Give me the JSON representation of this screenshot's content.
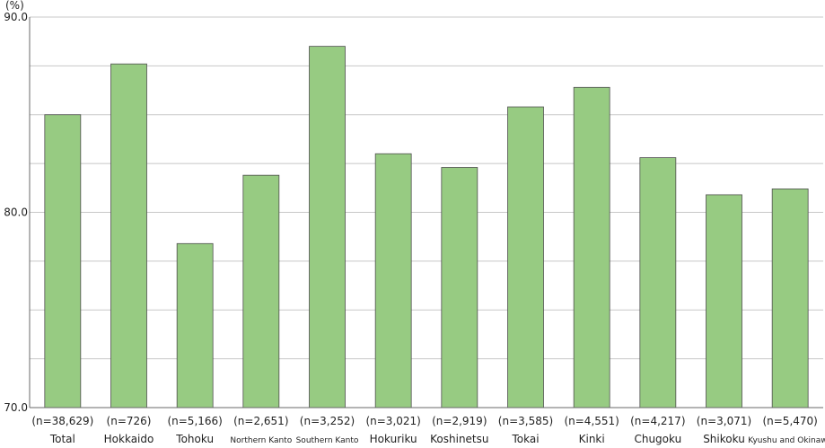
{
  "chart_data": {
    "type": "bar",
    "unit_label": "(%)",
    "ylim": [
      70,
      90
    ],
    "grid": true,
    "y_ticks": [
      {
        "value": 70,
        "label": "70.0"
      },
      {
        "value": 80,
        "label": "80.0"
      },
      {
        "value": 90,
        "label": "90.0"
      }
    ],
    "gridline_step": 2.5,
    "categories": [
      {
        "n": "(n=38,629)",
        "name": "Total",
        "small": false
      },
      {
        "n": "(n=726)",
        "name": "Hokkaido",
        "small": false
      },
      {
        "n": "(n=5,166)",
        "name": "Tohoku",
        "small": false
      },
      {
        "n": "(n=2,651)",
        "name": "Northern Kanto",
        "small": true
      },
      {
        "n": "(n=3,252)",
        "name": "Southern Kanto",
        "small": true
      },
      {
        "n": "(n=3,021)",
        "name": "Hokuriku",
        "small": false
      },
      {
        "n": "(n=2,919)",
        "name": "Koshinetsu",
        "small": false
      },
      {
        "n": "(n=3,585)",
        "name": "Tokai",
        "small": false
      },
      {
        "n": "(n=4,551)",
        "name": "Kinki",
        "small": false
      },
      {
        "n": "(n=4,217)",
        "name": "Chugoku",
        "small": false
      },
      {
        "n": "(n=3,071)",
        "name": "Shikoku",
        "small": false
      },
      {
        "n": "(n=5,470)",
        "name": "Kyushu and Okinawa",
        "small": true
      }
    ],
    "values": [
      85.0,
      87.6,
      78.4,
      81.9,
      88.5,
      83.0,
      82.3,
      85.4,
      86.4,
      82.8,
      80.9,
      81.2
    ],
    "colors": {
      "bar": "#97cb82",
      "bar_border": "#4f4f4f",
      "grid": "#c8c8c8",
      "axis": "#6a6a6a"
    }
  }
}
